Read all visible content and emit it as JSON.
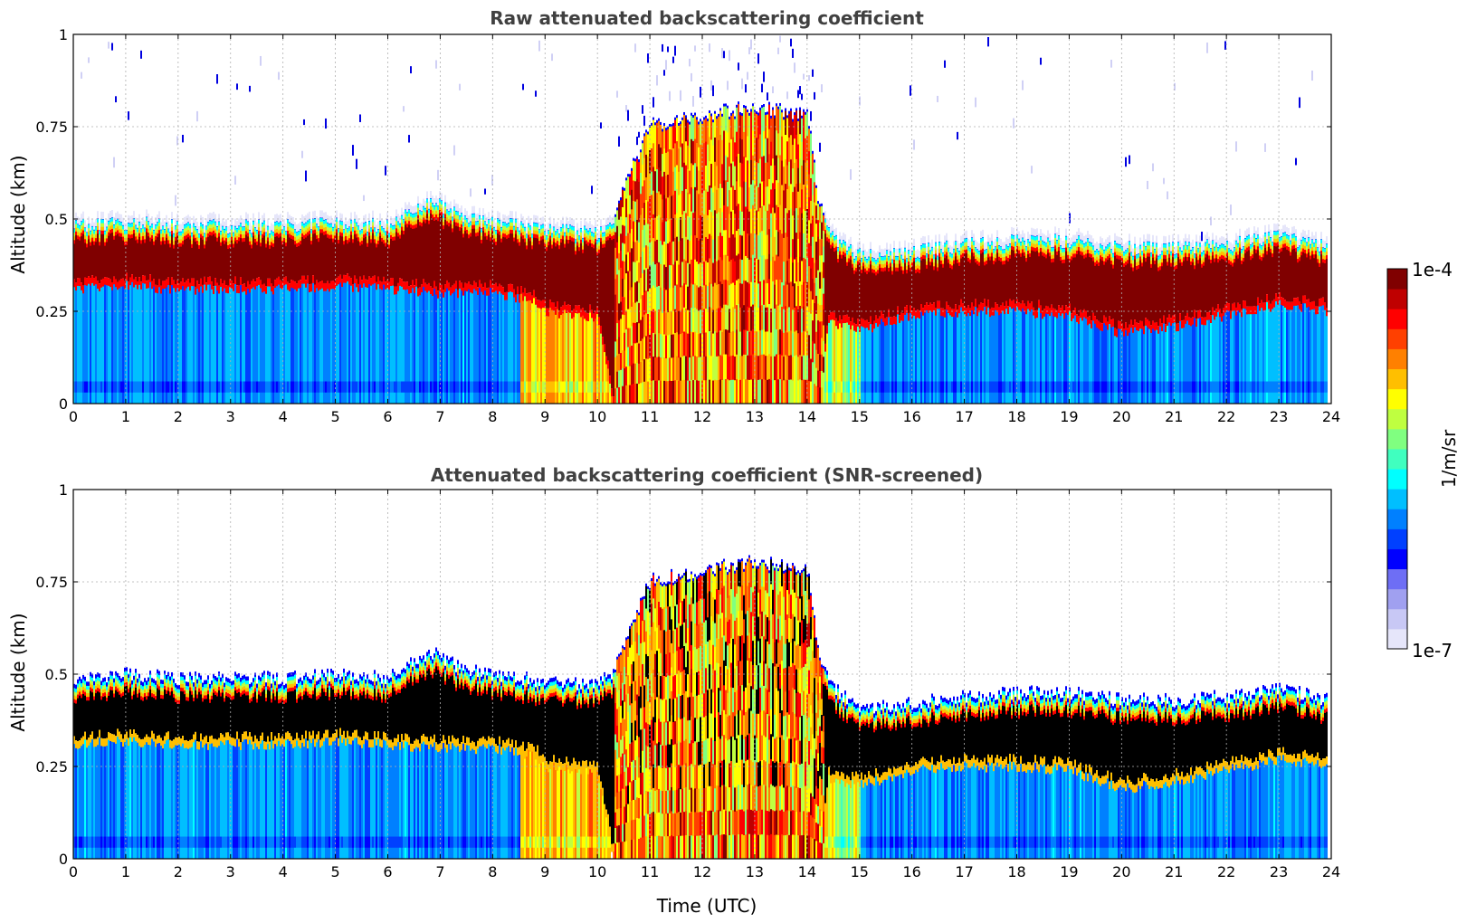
{
  "chart_data": [
    {
      "type": "heatmap",
      "title": "Raw attenuated backscattering coefficient",
      "ylabel": "Altitude (km)",
      "xlabel": "",
      "xlim": [
        0,
        24
      ],
      "ylim": [
        0,
        1
      ],
      "xticks": [
        "0",
        "1",
        "2",
        "3",
        "4",
        "5",
        "6",
        "7",
        "8",
        "9",
        "10",
        "11",
        "12",
        "13",
        "14",
        "15",
        "16",
        "17",
        "18",
        "19",
        "20",
        "21",
        "22",
        "23",
        "24"
      ],
      "yticks": [
        "0",
        "0.25",
        "0.5",
        "0.75",
        "1"
      ],
      "grid": true,
      "screened": false,
      "layer_top_km": [
        [
          0,
          0.48
        ],
        [
          1,
          0.49
        ],
        [
          2,
          0.48
        ],
        [
          3,
          0.48
        ],
        [
          4,
          0.48
        ],
        [
          5,
          0.49
        ],
        [
          6,
          0.48
        ],
        [
          6.8,
          0.55
        ],
        [
          7.5,
          0.5
        ],
        [
          8,
          0.49
        ],
        [
          9,
          0.47
        ],
        [
          10,
          0.46
        ],
        [
          10.3,
          0.5
        ],
        [
          10.6,
          0.62
        ],
        [
          11,
          0.75
        ],
        [
          12,
          0.78
        ],
        [
          13,
          0.8
        ],
        [
          14,
          0.78
        ],
        [
          14.2,
          0.55
        ],
        [
          14.5,
          0.45
        ],
        [
          15,
          0.4
        ],
        [
          16,
          0.41
        ],
        [
          17,
          0.43
        ],
        [
          18,
          0.44
        ],
        [
          19,
          0.44
        ],
        [
          20,
          0.42
        ],
        [
          21,
          0.42
        ],
        [
          22,
          0.43
        ],
        [
          23,
          0.45
        ],
        [
          24,
          0.42
        ]
      ],
      "layer_base_km": [
        [
          0,
          0.31
        ],
        [
          1,
          0.32
        ],
        [
          2,
          0.31
        ],
        [
          3,
          0.31
        ],
        [
          4,
          0.31
        ],
        [
          5,
          0.32
        ],
        [
          6,
          0.31
        ],
        [
          7,
          0.3
        ],
        [
          8,
          0.3
        ],
        [
          8.8,
          0.28
        ],
        [
          9,
          0.25
        ],
        [
          10,
          0.23
        ],
        [
          10.3,
          0.0
        ],
        [
          14.2,
          0.0
        ],
        [
          14.4,
          0.22
        ],
        [
          15,
          0.2
        ],
        [
          16,
          0.24
        ],
        [
          17,
          0.25
        ],
        [
          18,
          0.25
        ],
        [
          19,
          0.24
        ],
        [
          20,
          0.19
        ],
        [
          21,
          0.21
        ],
        [
          22,
          0.24
        ],
        [
          23,
          0.27
        ],
        [
          24,
          0.25
        ]
      ]
    },
    {
      "type": "heatmap",
      "title": "Attenuated backscattering coefficient (SNR-screened)",
      "ylabel": "Altitude (km)",
      "xlabel": "Time (UTC)",
      "xlim": [
        0,
        24
      ],
      "ylim": [
        0,
        1
      ],
      "xticks": [
        "0",
        "1",
        "2",
        "3",
        "4",
        "5",
        "6",
        "7",
        "8",
        "9",
        "10",
        "11",
        "12",
        "13",
        "14",
        "15",
        "16",
        "17",
        "18",
        "19",
        "20",
        "21",
        "22",
        "23",
        "24"
      ],
      "yticks": [
        "0",
        "0.25",
        "0.5",
        "0.75",
        "1"
      ],
      "grid": true,
      "screened": true,
      "layer_top_km": [
        [
          0,
          0.48
        ],
        [
          1,
          0.49
        ],
        [
          2,
          0.48
        ],
        [
          3,
          0.48
        ],
        [
          4,
          0.48
        ],
        [
          5,
          0.49
        ],
        [
          6,
          0.48
        ],
        [
          6.8,
          0.55
        ],
        [
          7.5,
          0.5
        ],
        [
          8,
          0.49
        ],
        [
          9,
          0.47
        ],
        [
          10,
          0.46
        ],
        [
          10.3,
          0.5
        ],
        [
          10.6,
          0.62
        ],
        [
          11,
          0.75
        ],
        [
          12,
          0.78
        ],
        [
          13,
          0.8
        ],
        [
          14,
          0.78
        ],
        [
          14.2,
          0.55
        ],
        [
          14.5,
          0.45
        ],
        [
          15,
          0.4
        ],
        [
          16,
          0.41
        ],
        [
          17,
          0.43
        ],
        [
          18,
          0.44
        ],
        [
          19,
          0.44
        ],
        [
          20,
          0.42
        ],
        [
          21,
          0.42
        ],
        [
          22,
          0.43
        ],
        [
          23,
          0.45
        ],
        [
          24,
          0.42
        ]
      ],
      "layer_base_km": [
        [
          0,
          0.31
        ],
        [
          1,
          0.32
        ],
        [
          2,
          0.31
        ],
        [
          3,
          0.31
        ],
        [
          4,
          0.31
        ],
        [
          5,
          0.32
        ],
        [
          6,
          0.31
        ],
        [
          7,
          0.3
        ],
        [
          8,
          0.3
        ],
        [
          8.8,
          0.28
        ],
        [
          9,
          0.25
        ],
        [
          10,
          0.23
        ],
        [
          10.3,
          0.0
        ],
        [
          14.2,
          0.0
        ],
        [
          14.4,
          0.22
        ],
        [
          15,
          0.2
        ],
        [
          16,
          0.24
        ],
        [
          17,
          0.25
        ],
        [
          18,
          0.25
        ],
        [
          19,
          0.24
        ],
        [
          20,
          0.19
        ],
        [
          21,
          0.21
        ],
        [
          22,
          0.24
        ],
        [
          23,
          0.27
        ],
        [
          24,
          0.25
        ]
      ]
    }
  ],
  "colorbar": {
    "max_label": "1e-4",
    "min_label": "1e-7",
    "label": "1/m/sr",
    "colors": [
      "#e6e6fa",
      "#c8c8f5",
      "#a0a0f0",
      "#6e6ef5",
      "#0000ff",
      "#0040ff",
      "#0080ff",
      "#00bfff",
      "#00ffff",
      "#40ffbf",
      "#80ff80",
      "#bfff40",
      "#ffff00",
      "#ffbf00",
      "#ff8000",
      "#ff4000",
      "#ff0000",
      "#bf0000",
      "#800000"
    ]
  }
}
